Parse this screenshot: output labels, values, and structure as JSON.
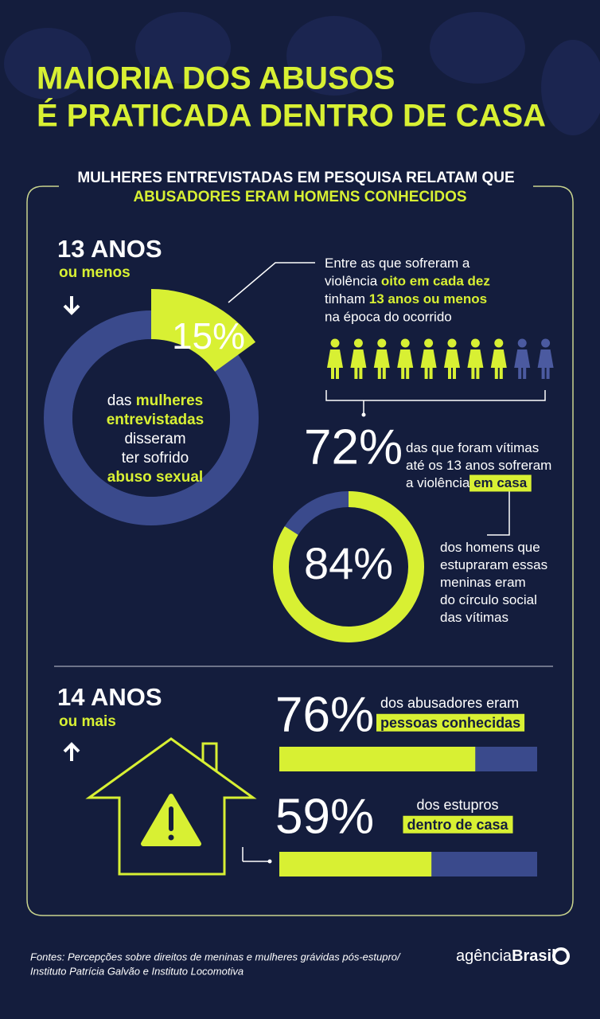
{
  "header": {
    "title_line1": "MAIORIA DOS ABUSOS",
    "title_line2": "É PRATICADA DENTRO DE CASA"
  },
  "subtitle": {
    "line1": "MULHERES ENTREVISTADAS EM PESQUISA RELATAM QUE",
    "line2": "ABUSADORES ERAM HOMENS CONHECIDOS"
  },
  "scale": [
    0,
    100
  ],
  "section1": {
    "heading": "13 ANOS",
    "subheading": "ou menos",
    "ring": {
      "value": 15,
      "label": "15%",
      "caption": [
        [
          {
            "text": "das"
          },
          {
            "text": "mulheres",
            "bold": true
          }
        ],
        [
          {
            "text": "entrevistadas",
            "bold": true
          }
        ],
        [
          {
            "text": "disseram"
          }
        ],
        [
          {
            "text": "ter sofrido"
          }
        ],
        [
          {
            "text": "abuso sexual",
            "bold": true
          }
        ]
      ]
    },
    "note": [
      [
        {
          "text": "Entre as que sofreram a"
        }
      ],
      [
        {
          "text": "violência"
        },
        {
          "text": "oito em cada dez",
          "bold": true
        }
      ],
      [
        {
          "text": "tinham"
        },
        {
          "text": "13 anos ou menos",
          "bold": true
        }
      ],
      [
        {
          "text": "na época do ocorrido"
        }
      ]
    ],
    "figures": {
      "filled": 8,
      "total": 10
    },
    "home": {
      "value": 72,
      "label": "72%",
      "text": [
        [
          {
            "text": "das que foram vítimas"
          }
        ],
        [
          {
            "text": "até os 13 anos sofreram"
          }
        ],
        [
          {
            "text": "a violência"
          },
          {
            "text": "em casa",
            "highlight": true
          }
        ]
      ]
    },
    "circle": {
      "value": 84,
      "label": "84%",
      "text": [
        [
          {
            "text": "dos homens que"
          }
        ],
        [
          {
            "text": "estupraram essas"
          }
        ],
        [
          {
            "text": "meninas eram"
          }
        ],
        [
          {
            "text": "do círculo social"
          }
        ],
        [
          {
            "text": "das vítimas"
          }
        ]
      ]
    }
  },
  "section2": {
    "heading": "14 ANOS",
    "subheading": "ou mais",
    "bars": [
      {
        "value": 76,
        "label": "76%",
        "text": [
          [
            {
              "text": "dos abusadores eram"
            }
          ],
          [
            {
              "text": "pessoas conhecidas",
              "highlight": true
            }
          ]
        ]
      },
      {
        "value": 59,
        "label": "59%",
        "text": [
          [
            {
              "text": "dos estupros"
            }
          ],
          [
            {
              "text": "dentro de casa",
              "highlight": true
            }
          ]
        ]
      }
    ]
  },
  "footer": {
    "source_line1": "Fontes: Percepções sobre direitos de meninas e mulheres grávidas pós-estupro/",
    "source_line2": "Instituto Patrícia Galvão e Instituto Locomotiva",
    "logo_light": "agência",
    "logo_bold": "Brasil"
  }
}
